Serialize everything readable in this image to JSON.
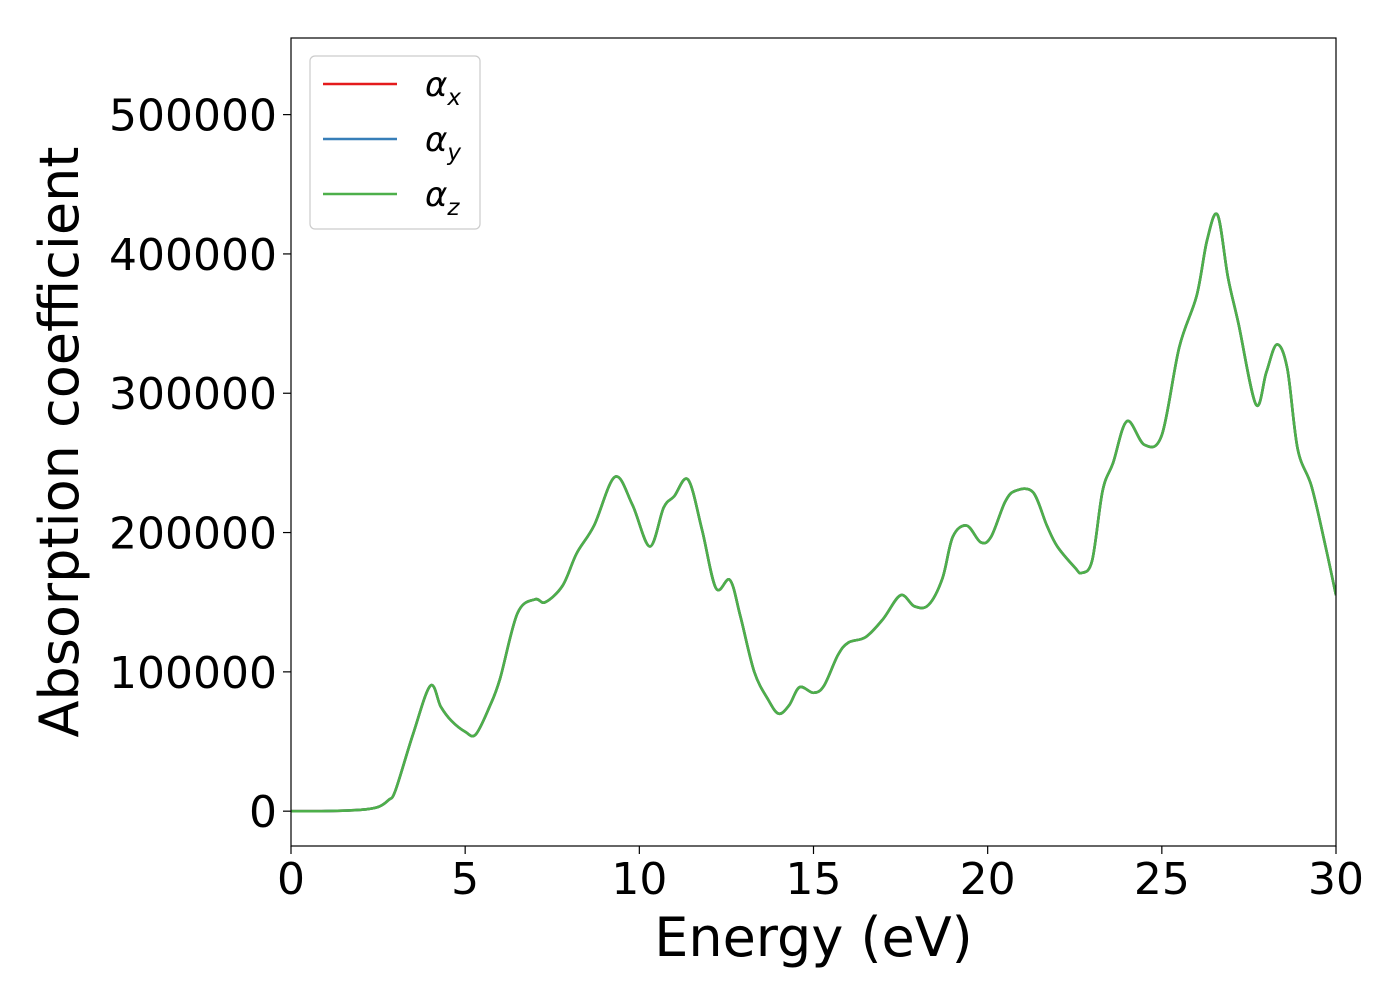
{
  "chart_data": {
    "type": "line",
    "xlabel": "Energy (eV)",
    "ylabel": "Absorption coefficient",
    "xlim": [
      0,
      30
    ],
    "ylim": [
      -25000,
      555000
    ],
    "xticks": [
      "0",
      "5",
      "10",
      "15",
      "20",
      "25",
      "30"
    ],
    "yticks": [
      "0",
      "100000",
      "200000",
      "300000",
      "400000",
      "500000"
    ],
    "grid": false,
    "legend_position": "top-left",
    "x": [
      0,
      1,
      2,
      2.5,
      2.8,
      3.0,
      3.5,
      4.0,
      4.3,
      4.6,
      5.0,
      5.3,
      5.7,
      6.0,
      6.5,
      7.0,
      7.3,
      7.8,
      8.2,
      8.7,
      9.3,
      9.8,
      10.3,
      10.7,
      11.0,
      11.4,
      11.8,
      12.2,
      12.6,
      12.9,
      13.3,
      13.7,
      14.0,
      14.3,
      14.6,
      15.0,
      15.3,
      15.7,
      16.0,
      16.5,
      17.0,
      17.5,
      17.9,
      18.3,
      18.7,
      19.0,
      19.4,
      19.8,
      20.1,
      20.5,
      20.8,
      21.3,
      21.7,
      22.0,
      22.5,
      22.7,
      23.0,
      23.3,
      23.6,
      24.0,
      24.5,
      25.0,
      25.5,
      26.0,
      26.3,
      26.6,
      26.9,
      27.2,
      27.7,
      28.0,
      28.3,
      28.6,
      28.9,
      29.3,
      29.7,
      30.0
    ],
    "series": [
      {
        "name": "α_x",
        "color": "#e41a1c",
        "values": [
          0,
          100,
          1000,
          3000,
          8000,
          15000,
          55000,
          90000,
          75000,
          65000,
          57000,
          55000,
          75000,
          95000,
          142000,
          152000,
          150000,
          162000,
          185000,
          205000,
          240000,
          220000,
          190000,
          218000,
          226000,
          238000,
          202000,
          160000,
          166000,
          140000,
          100000,
          80000,
          70000,
          76000,
          89000,
          85000,
          90000,
          112000,
          121000,
          125000,
          138000,
          155000,
          147000,
          148000,
          167000,
          197000,
          205000,
          193000,
          197000,
          222000,
          230000,
          229000,
          205000,
          190000,
          175000,
          171000,
          180000,
          230000,
          250000,
          280000,
          263000,
          270000,
          333000,
          370000,
          410000,
          428000,
          383000,
          350000,
          292000,
          315000,
          335000,
          318000,
          260000,
          233000,
          190000,
          155000
        ]
      },
      {
        "name": "α_y",
        "color": "#377eb8",
        "values": [
          0,
          100,
          1000,
          3000,
          8000,
          15000,
          55000,
          90000,
          75000,
          65000,
          57000,
          55000,
          75000,
          95000,
          142000,
          152000,
          150000,
          162000,
          185000,
          205000,
          240000,
          220000,
          190000,
          218000,
          226000,
          238000,
          202000,
          160000,
          166000,
          140000,
          100000,
          80000,
          70000,
          76000,
          89000,
          85000,
          90000,
          112000,
          121000,
          125000,
          138000,
          155000,
          147000,
          148000,
          167000,
          197000,
          205000,
          193000,
          197000,
          222000,
          230000,
          229000,
          205000,
          190000,
          175000,
          171000,
          180000,
          230000,
          250000,
          280000,
          263000,
          270000,
          333000,
          370000,
          410000,
          428000,
          383000,
          350000,
          292000,
          315000,
          335000,
          318000,
          260000,
          233000,
          190000,
          155000
        ]
      },
      {
        "name": "α_z",
        "color": "#4daf4a",
        "values": [
          0,
          100,
          1000,
          3000,
          8000,
          15000,
          55000,
          90000,
          75000,
          65000,
          57000,
          55000,
          75000,
          95000,
          142000,
          152000,
          150000,
          162000,
          185000,
          205000,
          240000,
          220000,
          190000,
          218000,
          226000,
          238000,
          202000,
          160000,
          166000,
          140000,
          100000,
          80000,
          70000,
          76000,
          89000,
          85000,
          90000,
          112000,
          121000,
          125000,
          138000,
          155000,
          147000,
          148000,
          167000,
          197000,
          205000,
          193000,
          197000,
          222000,
          230000,
          229000,
          205000,
          190000,
          175000,
          171000,
          180000,
          230000,
          250000,
          280000,
          263000,
          270000,
          333000,
          370000,
          410000,
          428000,
          383000,
          350000,
          292000,
          315000,
          335000,
          318000,
          260000,
          233000,
          190000,
          155000
        ]
      }
    ],
    "legend": [
      {
        "base": "α",
        "sub": "x",
        "color": "#e41a1c"
      },
      {
        "base": "α",
        "sub": "y",
        "color": "#377eb8"
      },
      {
        "base": "α",
        "sub": "z",
        "color": "#4daf4a"
      }
    ]
  }
}
